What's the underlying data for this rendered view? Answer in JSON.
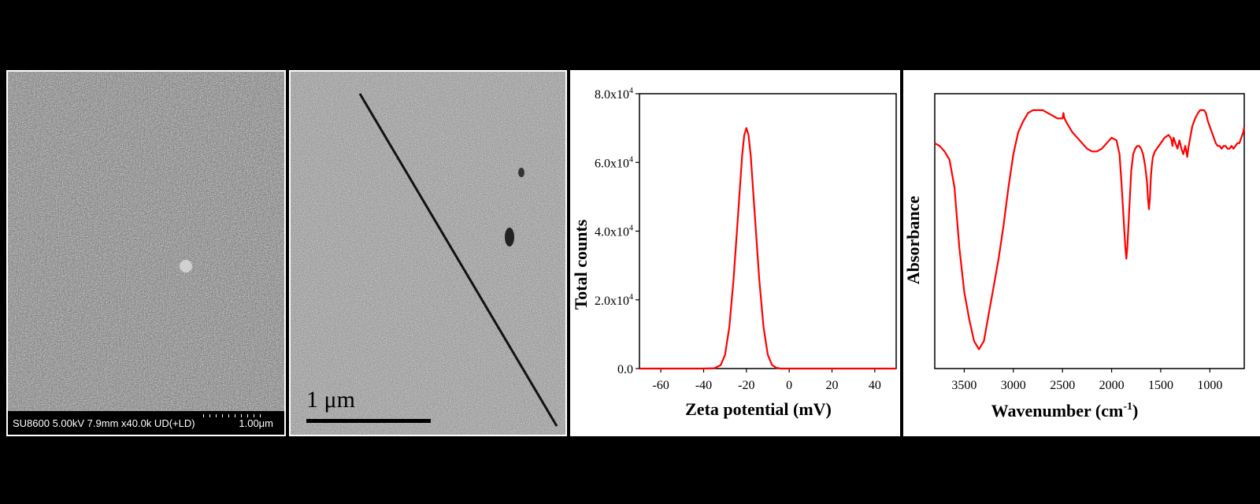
{
  "sem_left": {
    "info_text": "SU8600 5.00kV 7.9mm x40.0k UD(+LD)",
    "scale_text": "1.00μm"
  },
  "sem_right": {
    "scale_label": "1 μm"
  },
  "chart_data": [
    {
      "type": "line",
      "xlabel": "Zeta potential (mV)",
      "ylabel": "Total counts",
      "xlim": [
        -70,
        50
      ],
      "ylim": [
        0,
        80000
      ],
      "x_ticks": [
        "-60",
        "-40",
        "-20",
        "0",
        "20",
        "40"
      ],
      "x_tick_values": [
        -60,
        -40,
        -20,
        0,
        20,
        40
      ],
      "y_ticks": [
        {
          "value": 0,
          "mantissa": "0.0",
          "exp": ""
        },
        {
          "value": 20000,
          "mantissa": "2.0x10",
          "exp": "4"
        },
        {
          "value": 40000,
          "mantissa": "4.0x10",
          "exp": "4"
        },
        {
          "value": 60000,
          "mantissa": "6.0x10",
          "exp": "4"
        },
        {
          "value": 80000,
          "mantissa": "8.0x10",
          "exp": "4"
        }
      ],
      "series": [
        {
          "color": "#ff0000",
          "x": [
            -70,
            -40,
            -35,
            -32,
            -30,
            -28,
            -26,
            -24,
            -22,
            -21,
            -20,
            -19,
            -18,
            -16,
            -14,
            -12,
            -10,
            -8,
            -6,
            -4,
            0,
            20,
            50
          ],
          "y": [
            0,
            0,
            100,
            1000,
            4000,
            12000,
            26000,
            44000,
            62000,
            68000,
            70000,
            68000,
            62000,
            44000,
            26000,
            12000,
            4000,
            1000,
            200,
            0,
            0,
            0,
            0
          ]
        }
      ],
      "grid": false
    },
    {
      "type": "line",
      "xlabel": "Wavenumber (cm",
      "xlabel_sup": "-1",
      "xlabel_end": ")",
      "ylabel": "Absorbance",
      "xlim": [
        3800,
        650
      ],
      "x_ticks": [
        "3500",
        "3000",
        "2500",
        "2000",
        "1500",
        "1000"
      ],
      "x_tick_values": [
        3500,
        3000,
        2500,
        2000,
        1500,
        1000
      ],
      "y_ticks": [],
      "ylim": [
        0,
        100
      ],
      "series": [
        {
          "color": "#ff0000",
          "x": [
            3800,
            3750,
            3700,
            3650,
            3600,
            3550,
            3500,
            3450,
            3400,
            3350,
            3300,
            3250,
            3200,
            3150,
            3100,
            3050,
            3000,
            2950,
            2900,
            2850,
            2800,
            2750,
            2700,
            2650,
            2600,
            2550,
            2500,
            2490,
            2480,
            2450,
            2400,
            2350,
            2300,
            2250,
            2200,
            2150,
            2100,
            2050,
            2000,
            1950,
            1920,
            1900,
            1880,
            1860,
            1850,
            1840,
            1820,
            1800,
            1780,
            1760,
            1740,
            1720,
            1700,
            1680,
            1660,
            1640,
            1630,
            1620,
            1610,
            1600,
            1590,
            1580,
            1560,
            1540,
            1500,
            1460,
            1420,
            1400,
            1390,
            1380,
            1370,
            1350,
            1330,
            1310,
            1290,
            1270,
            1250,
            1240,
            1230,
            1220,
            1200,
            1180,
            1150,
            1120,
            1100,
            1080,
            1060,
            1040,
            1020,
            1000,
            980,
            960,
            940,
            920,
            900,
            880,
            860,
            840,
            820,
            800,
            780,
            760,
            740,
            720,
            700,
            680,
            660,
            650
          ],
          "y": [
            82,
            81,
            79,
            76,
            66,
            44,
            28,
            18,
            10,
            7,
            10,
            20,
            30,
            40,
            52,
            66,
            78,
            86,
            90,
            93,
            94,
            94,
            94,
            93,
            92,
            91,
            91,
            93,
            91,
            89,
            86,
            84,
            82,
            80,
            79,
            79,
            80,
            82,
            84,
            83,
            78,
            68,
            56,
            44,
            40,
            44,
            58,
            72,
            78,
            80,
            81,
            81,
            80,
            78,
            74,
            68,
            62,
            58,
            62,
            70,
            74,
            77,
            79,
            80,
            82,
            84,
            85,
            84,
            83,
            81,
            84,
            82,
            80,
            83,
            80,
            78,
            81,
            79,
            77,
            80,
            84,
            88,
            91,
            93,
            94,
            94,
            94,
            93,
            90,
            88,
            86,
            84,
            82,
            81,
            81,
            80,
            81,
            81,
            80,
            80,
            81,
            80,
            81,
            82,
            82,
            84,
            86,
            88
          ]
        }
      ],
      "grid": false
    }
  ]
}
